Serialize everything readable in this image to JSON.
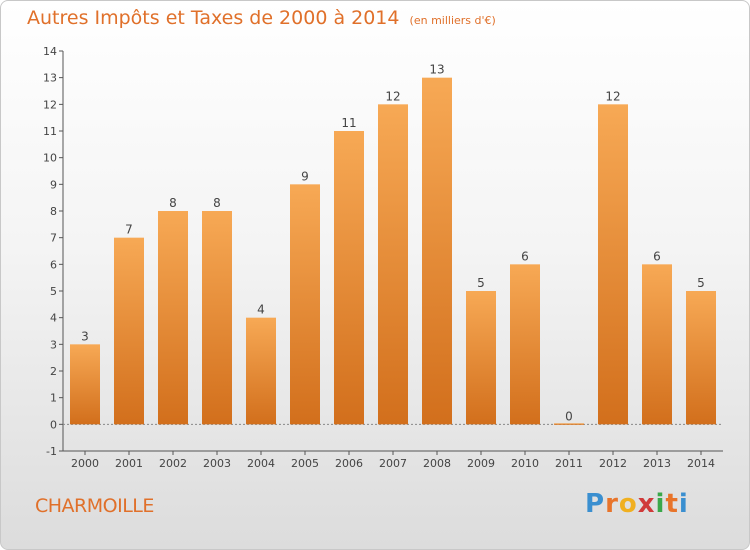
{
  "header": {
    "title": "Autres Impôts et Taxes de 2000 à 2014",
    "unit": "(en milliers d'€)"
  },
  "footer": {
    "commune": "CHARMOILLE",
    "logo_letters": [
      "P",
      "r",
      "o",
      "x",
      "i",
      "t",
      "i"
    ],
    "logo_colors": [
      "#3a8fd0",
      "#e8742a",
      "#f0b020",
      "#d03a3a",
      "#3aa84a",
      "#e8742a",
      "#3a8fd0"
    ]
  },
  "colors": {
    "bar_light": "#f7a955",
    "bar_dark": "#d26f1c",
    "grid": "#555555",
    "text": "#444444"
  },
  "chart_data": {
    "type": "bar",
    "title": "Autres Impôts et Taxes de 2000 à 2014",
    "subtitle": "(en milliers d'€)",
    "categories": [
      "2000",
      "2001",
      "2002",
      "2003",
      "2004",
      "2005",
      "2006",
      "2007",
      "2008",
      "2009",
      "2010",
      "2011",
      "2012",
      "2013",
      "2014"
    ],
    "values": [
      3,
      7,
      8,
      8,
      4,
      9,
      11,
      12,
      13,
      5,
      6,
      0,
      12,
      6,
      5
    ],
    "ylim": [
      -1,
      14
    ],
    "yticks": [
      -1,
      0,
      1,
      2,
      3,
      4,
      5,
      6,
      7,
      8,
      9,
      10,
      11,
      12,
      13,
      14
    ],
    "ytick_labels": [
      "-1",
      "0",
      "1",
      "2",
      "3",
      "4",
      "5",
      "6",
      "7",
      "8",
      "9",
      "10",
      "11",
      "12",
      "13",
      "14"
    ],
    "grid": false,
    "legend": "none"
  }
}
